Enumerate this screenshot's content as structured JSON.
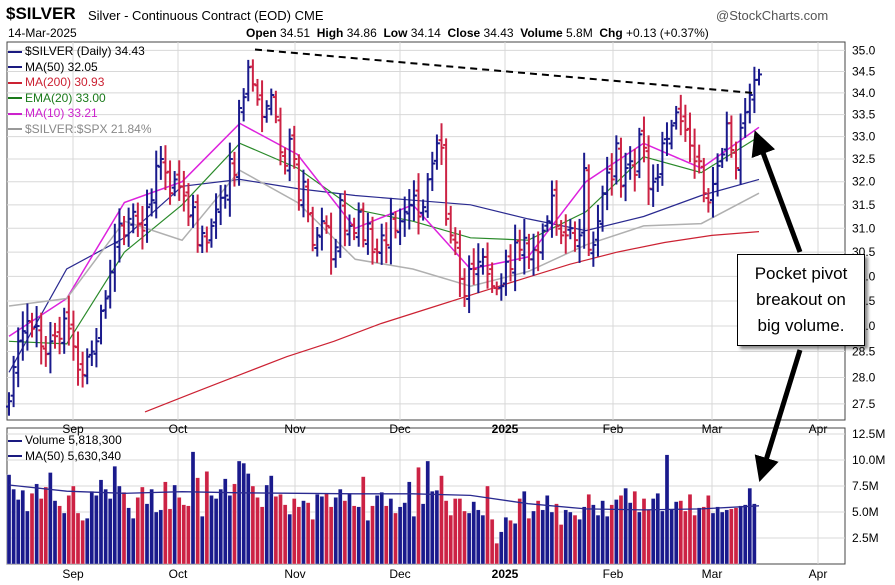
{
  "header": {
    "symbol": "$SILVER",
    "name": "Silver - Continuous Contract (EOD) CME",
    "date": "14-Mar-2025",
    "open_label": "Open",
    "open": "34.51",
    "high_label": "High",
    "high": "34.86",
    "low_label": "Low",
    "low": "34.14",
    "close_label": "Close",
    "close": "34.43",
    "volume_label": "Volume",
    "volume": "5.8M",
    "chg_label": "Chg",
    "chg": "+0.13 (+0.37%)",
    "brand": "@StockCharts.com"
  },
  "legend_price": [
    {
      "text": "$SILVER (Daily) 34.43",
      "color": "#1a1a80"
    },
    {
      "text": "MA(50) 32.05",
      "color": "#1a1a80"
    },
    {
      "text": "MA(200) 30.93",
      "color": "#cc2233"
    },
    {
      "text": "EMA(20) 33.00",
      "color": "#1a7a1a"
    },
    {
      "text": "MA(10) 33.21",
      "color": "#cc22cc"
    },
    {
      "text": "$SILVER:$SPX 21.84%",
      "color": "#999999"
    }
  ],
  "legend_volume": [
    {
      "text": "Volume 5,818,300",
      "color": "#1a1a80"
    },
    {
      "text": "MA(50) 5,630,340",
      "color": "#1a1a80"
    }
  ],
  "annotation": {
    "line1": "Pocket pivot",
    "line2": "breakout on",
    "line3": "big volume."
  },
  "colors": {
    "up": "#1a1a8c",
    "down": "#cc2244",
    "ma50": "#2a2a90",
    "ma200": "#cc2233",
    "ema20": "#2a8a2a",
    "ma10": "#dd22dd",
    "ratio": "#b0b0b0",
    "grid": "#d8d8d8"
  },
  "chart_data": [
    {
      "type": "ohlc",
      "title": "$SILVER (Daily)",
      "x_tick_labels": [
        "Sep",
        "Oct",
        "Nov",
        "Dec",
        "2025",
        "Feb",
        "Mar",
        "Apr"
      ],
      "y_tick_labels": [
        "27.5",
        "28.0",
        "28.5",
        "29.0",
        "29.5",
        "30.0",
        "30.5",
        "31.0",
        "31.5",
        "32.0",
        "32.5",
        "33.0",
        "33.5",
        "34.0",
        "34.5",
        "35.0"
      ],
      "ylim": [
        27.2,
        35.2
      ],
      "y_scale": "log",
      "series": [
        {
          "name": "$SILVER (Daily)",
          "values": [
            27.55,
            28.2,
            28.7,
            28.9,
            29.1,
            28.95,
            29.0,
            28.6,
            28.45,
            28.7,
            28.8,
            28.75,
            29.15,
            28.95,
            28.6,
            28.15,
            28.05,
            28.4,
            28.5,
            28.7,
            29.3,
            29.55,
            30.1,
            30.7,
            31.1,
            30.85,
            31.2,
            31.35,
            31.1,
            30.95,
            31.45,
            31.6,
            32.35,
            32.5,
            32.2,
            31.75,
            32.05,
            31.9,
            31.7,
            31.25,
            31.45,
            30.65,
            30.9,
            30.7,
            31.05,
            31.4,
            31.65,
            31.7,
            32.5,
            32.15,
            33.65,
            33.9,
            34.6,
            34.2,
            33.85,
            33.45,
            33.7,
            33.95,
            33.45,
            32.65,
            32.35,
            32.95,
            32.5,
            31.6,
            32.0,
            31.3,
            30.65,
            30.85,
            31.15,
            31.05,
            30.35,
            30.6,
            31.6,
            30.95,
            31.05,
            30.9,
            31.35,
            30.75,
            31.1,
            30.5,
            30.5,
            30.85,
            30.65,
            31.3,
            30.95,
            31.15,
            31.35,
            31.5,
            31.7,
            31.25,
            31.45,
            32.05,
            32.4,
            32.85,
            32.75,
            31.2,
            30.85,
            30.7,
            29.95,
            29.6,
            30.15,
            30.15,
            30.3,
            30.4,
            30.05,
            29.8,
            29.75,
            29.8,
            30.3,
            30.15,
            30.7,
            30.55,
            30.8,
            30.35,
            30.55,
            30.5,
            30.95,
            31.15,
            31.7,
            31.05,
            30.85,
            30.85,
            31.0,
            30.75,
            30.85,
            32.3,
            30.55,
            30.65,
            31.15,
            31.75,
            32.2,
            32.05,
            32.85,
            31.9,
            32.3,
            32.45,
            32.15,
            33.05,
            32.75,
            31.85,
            32.0,
            32.1,
            32.85,
            32.95,
            33.25,
            33.55,
            33.35,
            33.15,
            32.8,
            32.45,
            32.45,
            31.75,
            31.55,
            31.95,
            32.35,
            32.6,
            33.3,
            32.7,
            32.3,
            33.2,
            33.55,
            33.95,
            34.3,
            34.43
          ]
        },
        {
          "name": "MA(50)",
          "values": [
            28.1,
            30.15,
            30.8,
            31.9,
            32.05,
            31.85,
            31.7,
            31.6,
            31.5,
            31.2,
            30.95,
            31.25,
            31.7,
            32.05
          ]
        },
        {
          "name": "MA(200)",
          "values": [
            27.35,
            27.7,
            28.05,
            28.4,
            28.7,
            29.05,
            29.35,
            29.65,
            29.95,
            30.25,
            30.5,
            30.7,
            30.85,
            30.93
          ]
        },
        {
          "name": "EMA(20)",
          "values": [
            28.7,
            28.65,
            30.5,
            31.5,
            32.85,
            32.3,
            31.4,
            31.15,
            30.8,
            30.75,
            31.35,
            32.55,
            32.2,
            33.0
          ]
        },
        {
          "name": "MA(10)",
          "values": [
            28.8,
            29.55,
            31.55,
            32.0,
            33.3,
            32.6,
            31.0,
            31.5,
            30.15,
            30.4,
            32.0,
            32.85,
            32.3,
            33.21
          ]
        },
        {
          "name": "$SILVER:$SPX",
          "values": [
            29.4,
            29.55,
            31.15,
            30.75,
            32.25,
            31.55,
            30.35,
            30.15,
            29.8,
            30.1,
            30.65,
            31.05,
            31.1,
            31.75
          ]
        }
      ]
    },
    {
      "type": "bar",
      "title": "Volume",
      "y_tick_labels": [
        "2.5M",
        "5.0M",
        "7.5M",
        "10.0M",
        "12.5M"
      ],
      "ylim": [
        0,
        12.5
      ],
      "unit": "M",
      "values": [
        8.6,
        7.2,
        6.2,
        7.1,
        5.1,
        6.8,
        7.7,
        6.3,
        7.4,
        8.8,
        6.1,
        5.6,
        4.9,
        6.6,
        7.5,
        4.9,
        4.2,
        4.4,
        7.0,
        6.6,
        8.1,
        7.2,
        6.3,
        9.4,
        7.5,
        6.9,
        5.4,
        4.4,
        6.4,
        7.4,
        5.8,
        7.2,
        5.0,
        5.2,
        7.9,
        5.3,
        7.6,
        6.4,
        5.7,
        5.6,
        10.8,
        8.3,
        4.6,
        8.9,
        6.6,
        6.3,
        7.2,
        8.2,
        6.6,
        7.7,
        9.9,
        9.7,
        8.7,
        7.5,
        6.4,
        5.5,
        7.6,
        8.5,
        6.5,
        6.7,
        5.7,
        4.8,
        6.3,
        5.5,
        6.1,
        5.9,
        4.3,
        6.7,
        6.5,
        6.8,
        5.5,
        6.4,
        7.2,
        6.1,
        6.8,
        5.6,
        5.5,
        8.4,
        4.2,
        5.6,
        6.6,
        6.9,
        5.6,
        6.3,
        4.9,
        5.5,
        5.9,
        7.9,
        4.6,
        9.3,
        5.8,
        9.9,
        7.0,
        7.1,
        8.5,
        6.1,
        4.7,
        6.3,
        6.3,
        5.1,
        4.9,
        6.0,
        5.2,
        4.7,
        7.5,
        4.3,
        2.0,
        3.1,
        4.5,
        4.2,
        3.9,
        6.3,
        7.0,
        4.4,
        5.1,
        6.1,
        5.2,
        6.6,
        5.0,
        5.8,
        3.8,
        5.2,
        5.0,
        4.7,
        4.3,
        5.5,
        6.7,
        5.7,
        4.7,
        6.1,
        4.6,
        5.7,
        6.2,
        6.6,
        7.3,
        5.9,
        7.0,
        5.0,
        6.3,
        5.2,
        6.3,
        6.8,
        5.1,
        10.5,
        5.3,
        6.0,
        6.1,
        5.1,
        6.7,
        4.7,
        5.4,
        5.5,
        6.6,
        4.9,
        5.5,
        5.0,
        5.2,
        5.3,
        5.4,
        5.6,
        5.7,
        7.3,
        5.8
      ],
      "series": [
        {
          "name": "MA(50)",
          "values": [
            7.6,
            7.0,
            6.8,
            6.95,
            6.85,
            6.8,
            6.75,
            6.75,
            6.6,
            5.8,
            5.3,
            5.2,
            5.3,
            5.6
          ]
        }
      ]
    }
  ]
}
